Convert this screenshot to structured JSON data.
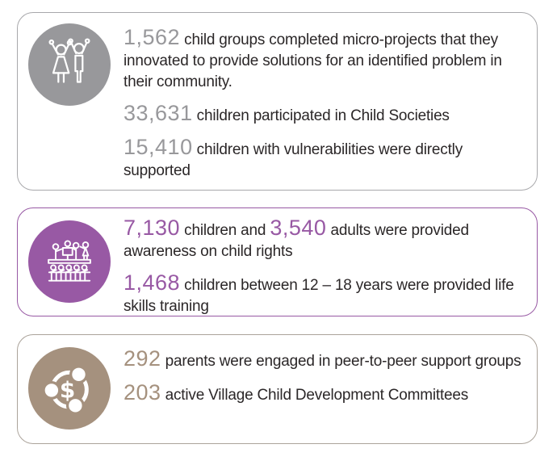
{
  "theme": {
    "background": "#ffffff",
    "body_text_color": "#2b2728"
  },
  "cards": [
    {
      "id": "child-societies",
      "icon": "children-celebrating-icon",
      "accent": "#98989b",
      "border": "#a8a8ab",
      "stats": [
        {
          "segments": [
            {
              "text": "1,562",
              "highlight": true
            },
            {
              "text": " child groups completed micro-projects that they innovated to provide solutions for an identified problem in their community.",
              "highlight": false
            }
          ]
        },
        {
          "segments": [
            {
              "text": "33,631",
              "highlight": true
            },
            {
              "text": " children participated in Child Societies",
              "highlight": false
            }
          ]
        },
        {
          "segments": [
            {
              "text": "15,410",
              "highlight": true
            },
            {
              "text": " children with vulnerabilities were directly supported",
              "highlight": false
            }
          ]
        }
      ]
    },
    {
      "id": "child-rights-awareness",
      "icon": "awareness-session-icon",
      "accent": "#9859a4",
      "border": "#9859a4",
      "stats": [
        {
          "segments": [
            {
              "text": "7,130",
              "highlight": true
            },
            {
              "text": " children and ",
              "highlight": false
            },
            {
              "text": "3,540",
              "highlight": true
            },
            {
              "text": " adults were provided awareness on child rights",
              "highlight": false
            }
          ]
        },
        {
          "segments": [
            {
              "text": "1,468",
              "highlight": true
            },
            {
              "text": " children between 12 – 18 years were provided life skills training",
              "highlight": false
            }
          ]
        }
      ]
    },
    {
      "id": "community-structures",
      "icon": "money-cycle-icon",
      "accent": "#a5917e",
      "border": "#aba39a",
      "stats": [
        {
          "segments": [
            {
              "text": "292",
              "highlight": true
            },
            {
              "text": " parents were engaged in peer-to-peer support groups",
              "highlight": false
            }
          ]
        },
        {
          "segments": [
            {
              "text": "203",
              "highlight": true
            },
            {
              "text": " active Village Child Development Committees",
              "highlight": false
            }
          ]
        }
      ]
    }
  ]
}
